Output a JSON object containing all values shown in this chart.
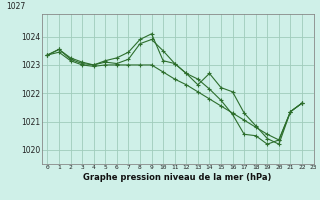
{
  "title": "Graphe pression niveau de la mer (hPa)",
  "background_color": "#cff0e8",
  "grid_color": "#a0ccbb",
  "line_color": "#2d6e2d",
  "xlim": [
    -0.5,
    23
  ],
  "ylim": [
    1019.5,
    1024.8
  ],
  "yticks": [
    1020,
    1021,
    1022,
    1023,
    1024
  ],
  "ytop_label": "1027",
  "xticks": [
    0,
    1,
    2,
    3,
    4,
    5,
    6,
    7,
    8,
    9,
    10,
    11,
    12,
    13,
    14,
    15,
    16,
    17,
    18,
    19,
    20,
    21,
    22,
    23
  ],
  "series": [
    [
      1023.35,
      1023.55,
      1023.25,
      1023.1,
      1023.0,
      1023.15,
      1023.25,
      1023.45,
      1023.9,
      1024.1,
      1023.15,
      1023.05,
      1022.7,
      1022.3,
      1022.7,
      1022.2,
      1022.05,
      1021.3,
      1020.85,
      1020.4,
      1020.2,
      1021.35,
      1021.65,
      null
    ],
    [
      1023.35,
      1023.55,
      1023.2,
      1023.05,
      1023.0,
      1023.1,
      1023.05,
      1023.2,
      1023.75,
      1023.9,
      1023.5,
      1023.05,
      1022.7,
      1022.5,
      1022.15,
      1021.75,
      1021.25,
      1020.55,
      1020.5,
      1020.2,
      1020.35,
      1021.35,
      1021.65,
      null
    ],
    [
      1023.35,
      1023.45,
      1023.15,
      1023.0,
      1022.95,
      1023.0,
      1023.0,
      1023.0,
      1023.0,
      1023.0,
      1022.75,
      1022.5,
      1022.3,
      1022.05,
      1021.8,
      1021.55,
      1021.3,
      1021.05,
      1020.8,
      1020.55,
      1020.35,
      1021.35,
      1021.65,
      null
    ]
  ]
}
